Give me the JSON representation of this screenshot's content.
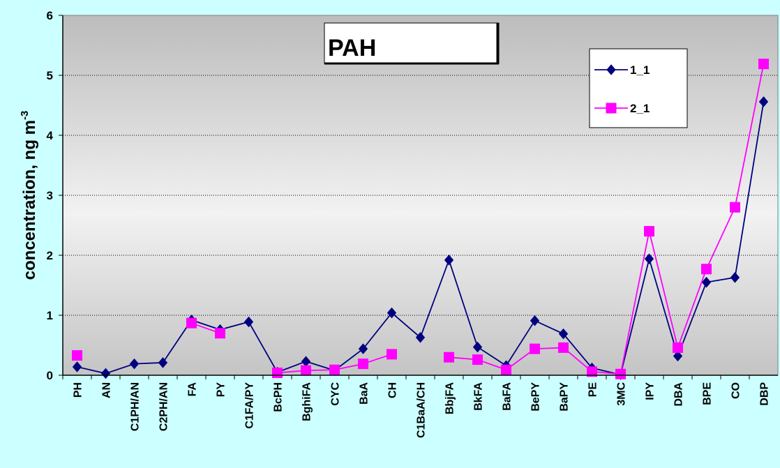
{
  "chart_data": {
    "type": "line",
    "title": "PAH",
    "ylabel": "concentration, ng m",
    "ylabel_superscript": "-3",
    "categories": [
      "PH",
      "AN",
      "C1PH/AN",
      "C2PH/AN",
      "FA",
      "PY",
      "C1FA/PY",
      "BcPH",
      "BghiFA",
      "CYC",
      "BaA",
      "CH",
      "C1BaA/CH",
      "BbjFA",
      "BkFA",
      "BaFA",
      "BePY",
      "BaPY",
      "PE",
      "3MC",
      "IPY",
      "DBA",
      "BPE",
      "CO",
      "DBP"
    ],
    "series": [
      {
        "name": "1_1",
        "color": "#000080",
        "marker": "diamond",
        "values": [
          0.14,
          0.03,
          0.19,
          0.21,
          0.92,
          0.76,
          0.89,
          0.05,
          0.23,
          0.08,
          0.44,
          1.04,
          0.63,
          1.92,
          0.47,
          0.16,
          0.91,
          0.69,
          0.12,
          0.01,
          1.94,
          0.32,
          1.55,
          1.63,
          4.56
        ]
      },
      {
        "name": "2_1",
        "color": "#ff00ff",
        "marker": "square",
        "values": [
          0.33,
          null,
          null,
          null,
          0.87,
          0.7,
          null,
          0.04,
          0.08,
          0.09,
          0.19,
          0.35,
          null,
          0.3,
          0.26,
          0.09,
          0.44,
          0.46,
          0.06,
          0.02,
          2.4,
          0.46,
          1.77,
          2.8,
          5.19
        ]
      }
    ],
    "ylim": [
      0,
      6
    ],
    "yticks": [
      0,
      1,
      2,
      3,
      4,
      5,
      6
    ],
    "grid": true
  }
}
